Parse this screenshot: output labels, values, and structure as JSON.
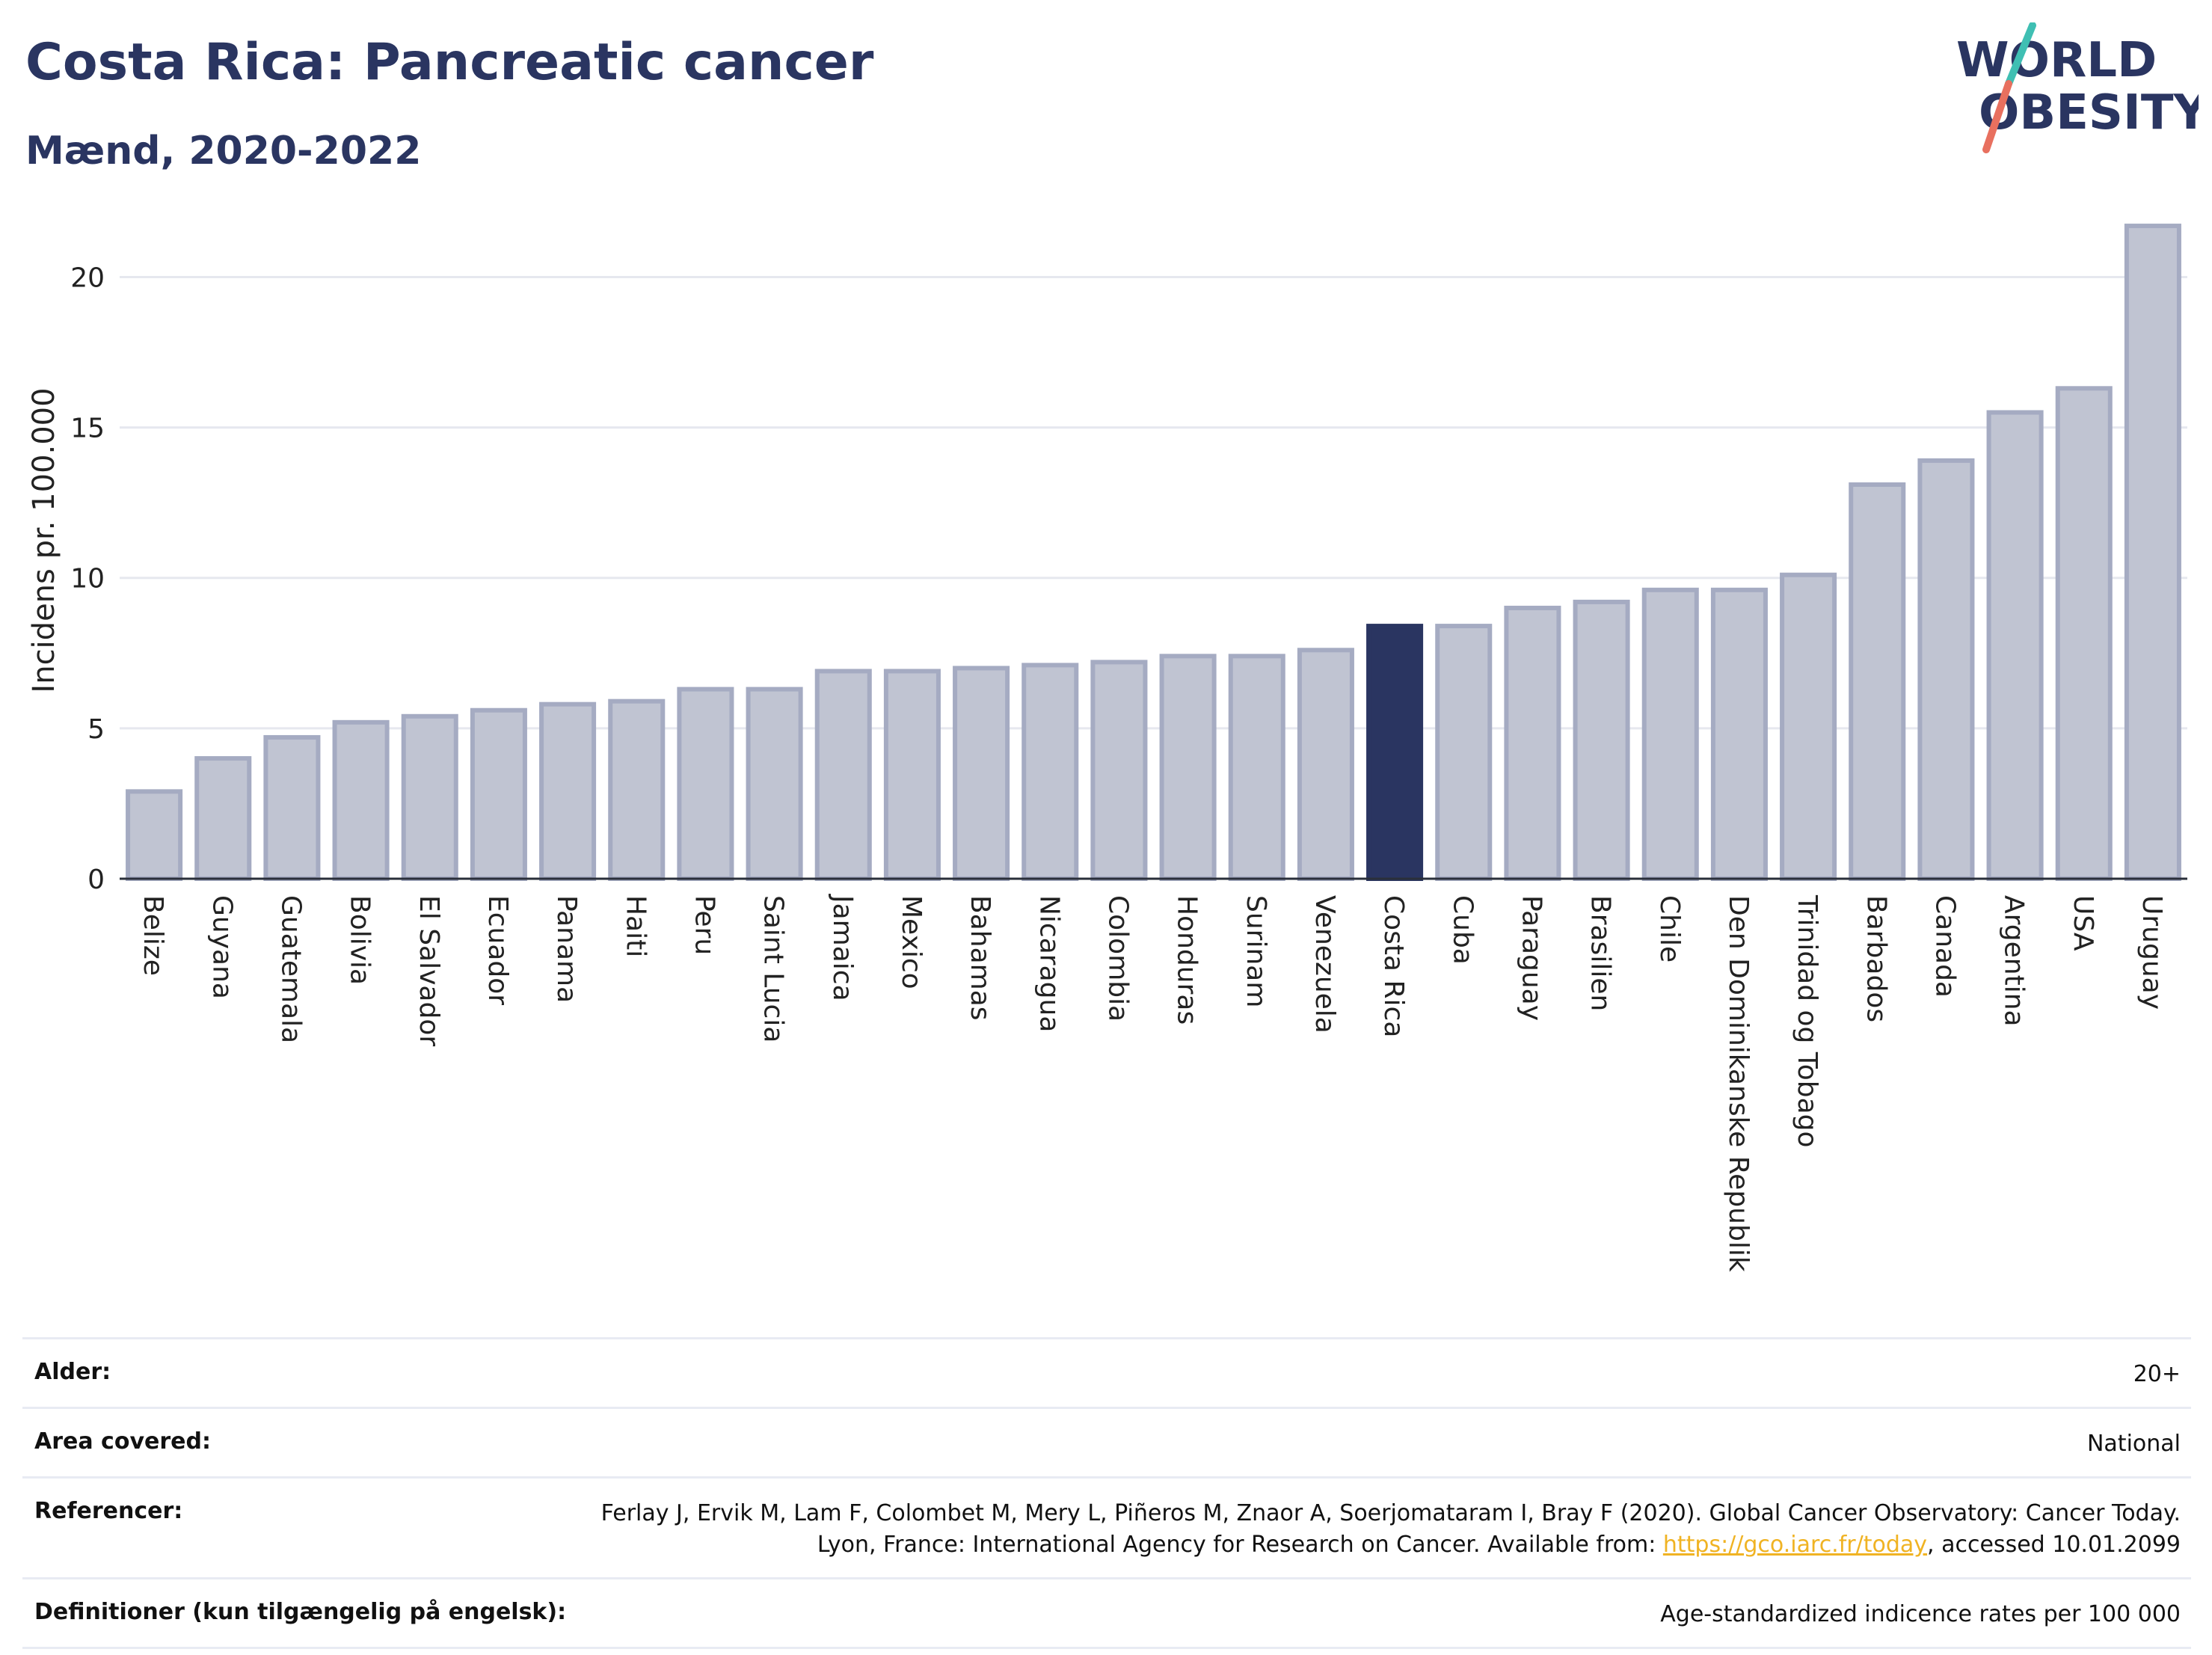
{
  "header": {
    "title": "Costa Rica: Pancreatic cancer",
    "subtitle": "Mænd, 2020-2022"
  },
  "logo": {
    "line1": "WORLD",
    "line2": "OBESITY",
    "colors": {
      "text": "#2a3561",
      "slash_top": "#3fbfb3",
      "slash_bottom": "#e8705f"
    }
  },
  "chart_data": {
    "type": "bar",
    "ylabel": "Incidens pr. 100.000",
    "xlabel": "",
    "ylim": [
      0,
      22
    ],
    "yticks": [
      0,
      5,
      10,
      15,
      20
    ],
    "grid": true,
    "highlight": "Costa Rica",
    "colors": {
      "bar": "#c0c4d2",
      "bar_edge": "#a5abc2",
      "highlight": "#2a3561",
      "grid": "#e6e8ef"
    },
    "categories": [
      "Belize",
      "Guyana",
      "Guatemala",
      "Bolivia",
      "El Salvador",
      "Ecuador",
      "Panama",
      "Haiti",
      "Peru",
      "Saint Lucia",
      "Jamaica",
      "Mexico",
      "Bahamas",
      "Nicaragua",
      "Colombia",
      "Honduras",
      "Surinam",
      "Venezuela",
      "Costa Rica",
      "Cuba",
      "Paraguay",
      "Brasilien",
      "Chile",
      "Den Dominikanske Republik",
      "Trinidad og Tobago",
      "Barbados",
      "Canada",
      "Argentina",
      "USA",
      "Uruguay"
    ],
    "values": [
      2.9,
      4.0,
      4.7,
      5.2,
      5.4,
      5.6,
      5.8,
      5.9,
      6.3,
      6.3,
      6.9,
      6.9,
      7.0,
      7.1,
      7.2,
      7.4,
      7.4,
      7.6,
      8.4,
      8.4,
      9.0,
      9.2,
      9.6,
      9.6,
      10.1,
      13.1,
      13.9,
      15.5,
      16.3,
      21.7
    ]
  },
  "meta": {
    "age_label": "Alder:",
    "age_value": "20+",
    "area_label": "Area covered:",
    "area_value": "National",
    "ref_label": "Referencer:",
    "ref_text_1": "Ferlay J, Ervik M, Lam F, Colombet M, Mery L, Piñeros M, Znaor A, Soerjomataram I, Bray F (2020). Global Cancer Observatory: Cancer Today. Lyon, France: International Agency for Research on Cancer. Available from: ",
    "ref_link": "https://gco.iarc.fr/today",
    "ref_text_2": ", accessed 10.01.2099",
    "def_label": "Definitioner (kun tilgængelig på engelsk):",
    "def_value": "Age-standardized indicence rates per 100 000"
  }
}
